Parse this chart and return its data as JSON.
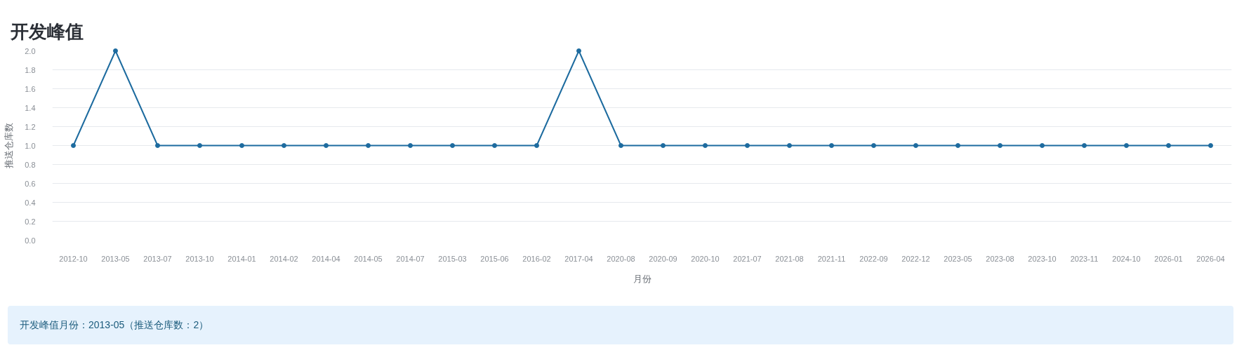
{
  "chart_data": {
    "type": "line",
    "title": "开发峰值",
    "xlabel": "月份",
    "ylabel": "推送仓库数",
    "categories": [
      "2012-10",
      "2013-05",
      "2013-07",
      "2013-10",
      "2014-01",
      "2014-02",
      "2014-04",
      "2014-05",
      "2014-07",
      "2015-03",
      "2015-06",
      "2016-02",
      "2017-04",
      "2020-08",
      "2020-09",
      "2020-10",
      "2021-07",
      "2021-08",
      "2021-11",
      "2022-09",
      "2022-12",
      "2023-05",
      "2023-08",
      "2023-10",
      "2023-11",
      "2024-10",
      "2026-01",
      "2026-04"
    ],
    "series": [
      {
        "color": "#1d6b9f",
        "values": [
          1,
          2,
          1,
          1,
          1,
          1,
          1,
          1,
          1,
          1,
          1,
          1,
          2,
          1,
          1,
          1,
          1,
          1,
          1,
          1,
          1,
          1,
          1,
          1,
          1,
          1,
          1,
          1
        ]
      }
    ],
    "ylim": [
      0,
      2
    ],
    "yticks": [
      {
        "value": 0,
        "label": "0.0"
      },
      0.2,
      0.4,
      0.6,
      0.8,
      {
        "value": 1,
        "label": "1.0"
      },
      1.2,
      1.4,
      1.6,
      1.8,
      {
        "value": 2,
        "label": "2.0"
      }
    ],
    "grid": "y",
    "marker": "circle",
    "line_style": "solid",
    "annotations": [
      "开发峰值月份：2013-05（推送仓库数：2）"
    ]
  }
}
